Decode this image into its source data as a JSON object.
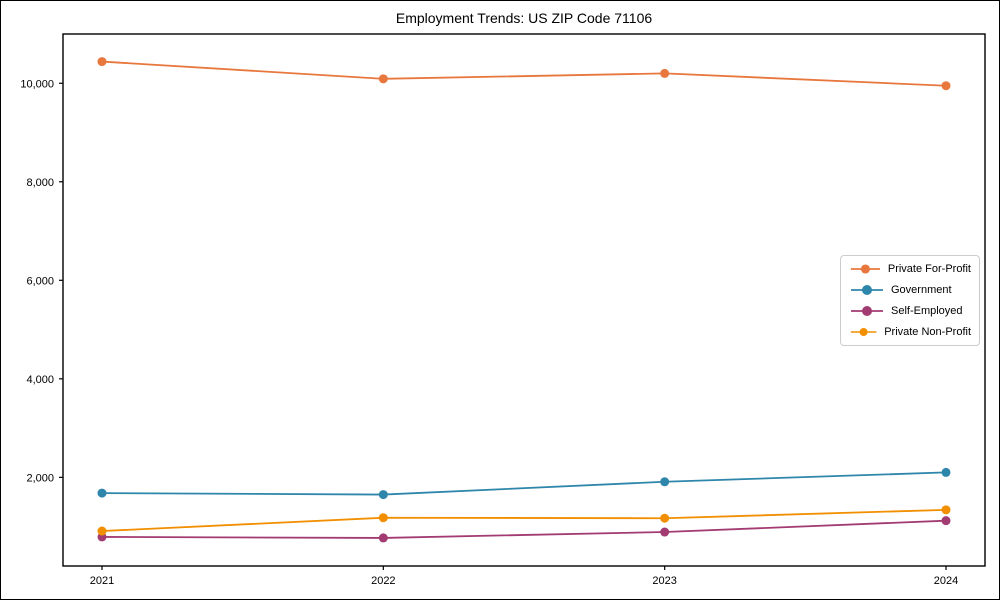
{
  "figure": {
    "background": "#ffffff",
    "border_color": "#000000",
    "axes_color": "#000000"
  },
  "chart_data": {
    "type": "line",
    "title": "Employment Trends: US ZIP Code 71106",
    "x": [
      "2021",
      "2022",
      "2023",
      "2024"
    ],
    "xlabel": "",
    "ylabel": "",
    "ylim": [
      200,
      11000
    ],
    "yticks": [
      2000,
      4000,
      6000,
      8000,
      10000
    ],
    "ytick_labels": [
      "2,000",
      "4,000",
      "6,000",
      "8,000",
      "10,000"
    ],
    "grid": false,
    "legend_position": "center right",
    "marker": "circle",
    "series": [
      {
        "name": "Private For-Profit",
        "color": "#E8773D",
        "values": [
          10440,
          10090,
          10200,
          9950
        ]
      },
      {
        "name": "Government",
        "color": "#2E86AB",
        "values": [
          1680,
          1650,
          1910,
          2100
        ]
      },
      {
        "name": "Self-Employed",
        "color": "#A23B72",
        "values": [
          790,
          770,
          890,
          1120
        ]
      },
      {
        "name": "Private Non-Profit",
        "color": "#F18F01",
        "values": [
          910,
          1180,
          1170,
          1340
        ]
      }
    ]
  }
}
